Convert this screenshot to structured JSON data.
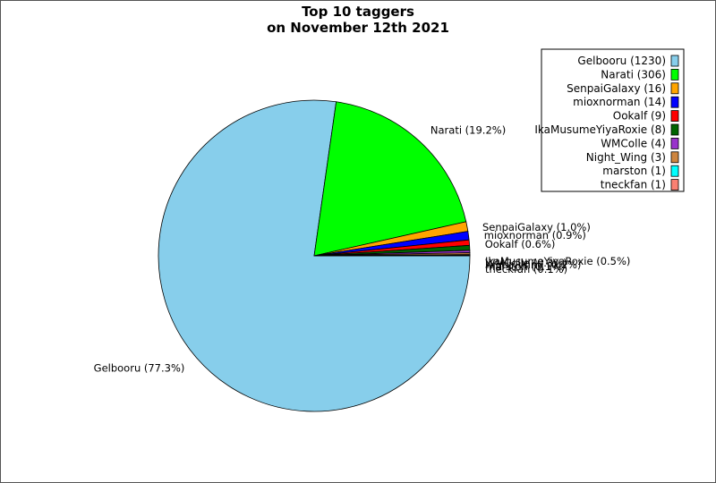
{
  "chart_data": {
    "type": "pie",
    "title": [
      "Top 10 taggers",
      "on November 12th 2021"
    ],
    "start_angle_deg": 0,
    "direction": "clockwise",
    "legend_position": "top-right",
    "slices": [
      {
        "name": "Gelbooru",
        "value": 1230,
        "label": "Gelbooru (77.3%)",
        "legend": "Gelbooru (1230)",
        "color": "#87ceeb"
      },
      {
        "name": "Narati",
        "value": 306,
        "label": "Narati (19.2%)",
        "legend": "Narati (306)",
        "color": "#00ff00"
      },
      {
        "name": "SenpaiGalaxy",
        "value": 16,
        "label": "SenpaiGalaxy (1.0%)",
        "legend": "SenpaiGalaxy (16)",
        "color": "#ffa500"
      },
      {
        "name": "mioxnorman",
        "value": 14,
        "label": "mioxnorman (0.9%)",
        "legend": "mioxnorman (14)",
        "color": "#0000ff"
      },
      {
        "name": "Ookalf",
        "value": 9,
        "label": "Ookalf (0.6%)",
        "legend": "Ookalf (9)",
        "color": "#ff0000"
      },
      {
        "name": "IkaMusumeYiyaRoxie",
        "value": 8,
        "label": "IkaMusumeYiyaRoxie (0.5%)",
        "legend": "IkaMusumeYiyaRoxie (8)",
        "color": "#006400"
      },
      {
        "name": "WMColle",
        "value": 4,
        "label": "WMColle (0.3%)",
        "legend": "WMColle (4)",
        "color": "#9932cc"
      },
      {
        "name": "Night_Wing",
        "value": 3,
        "label": "Night_Wing (0.2%)",
        "legend": "Night_Wing (3)",
        "color": "#cd853f"
      },
      {
        "name": "marston",
        "value": 1,
        "label": "marston (0.1%)",
        "legend": "marston (1)",
        "color": "#00ffff"
      },
      {
        "name": "tneckfan",
        "value": 1,
        "label": "tneckfan (0.1%)",
        "legend": "tneckfan (1)",
        "color": "#fa8072"
      }
    ]
  }
}
